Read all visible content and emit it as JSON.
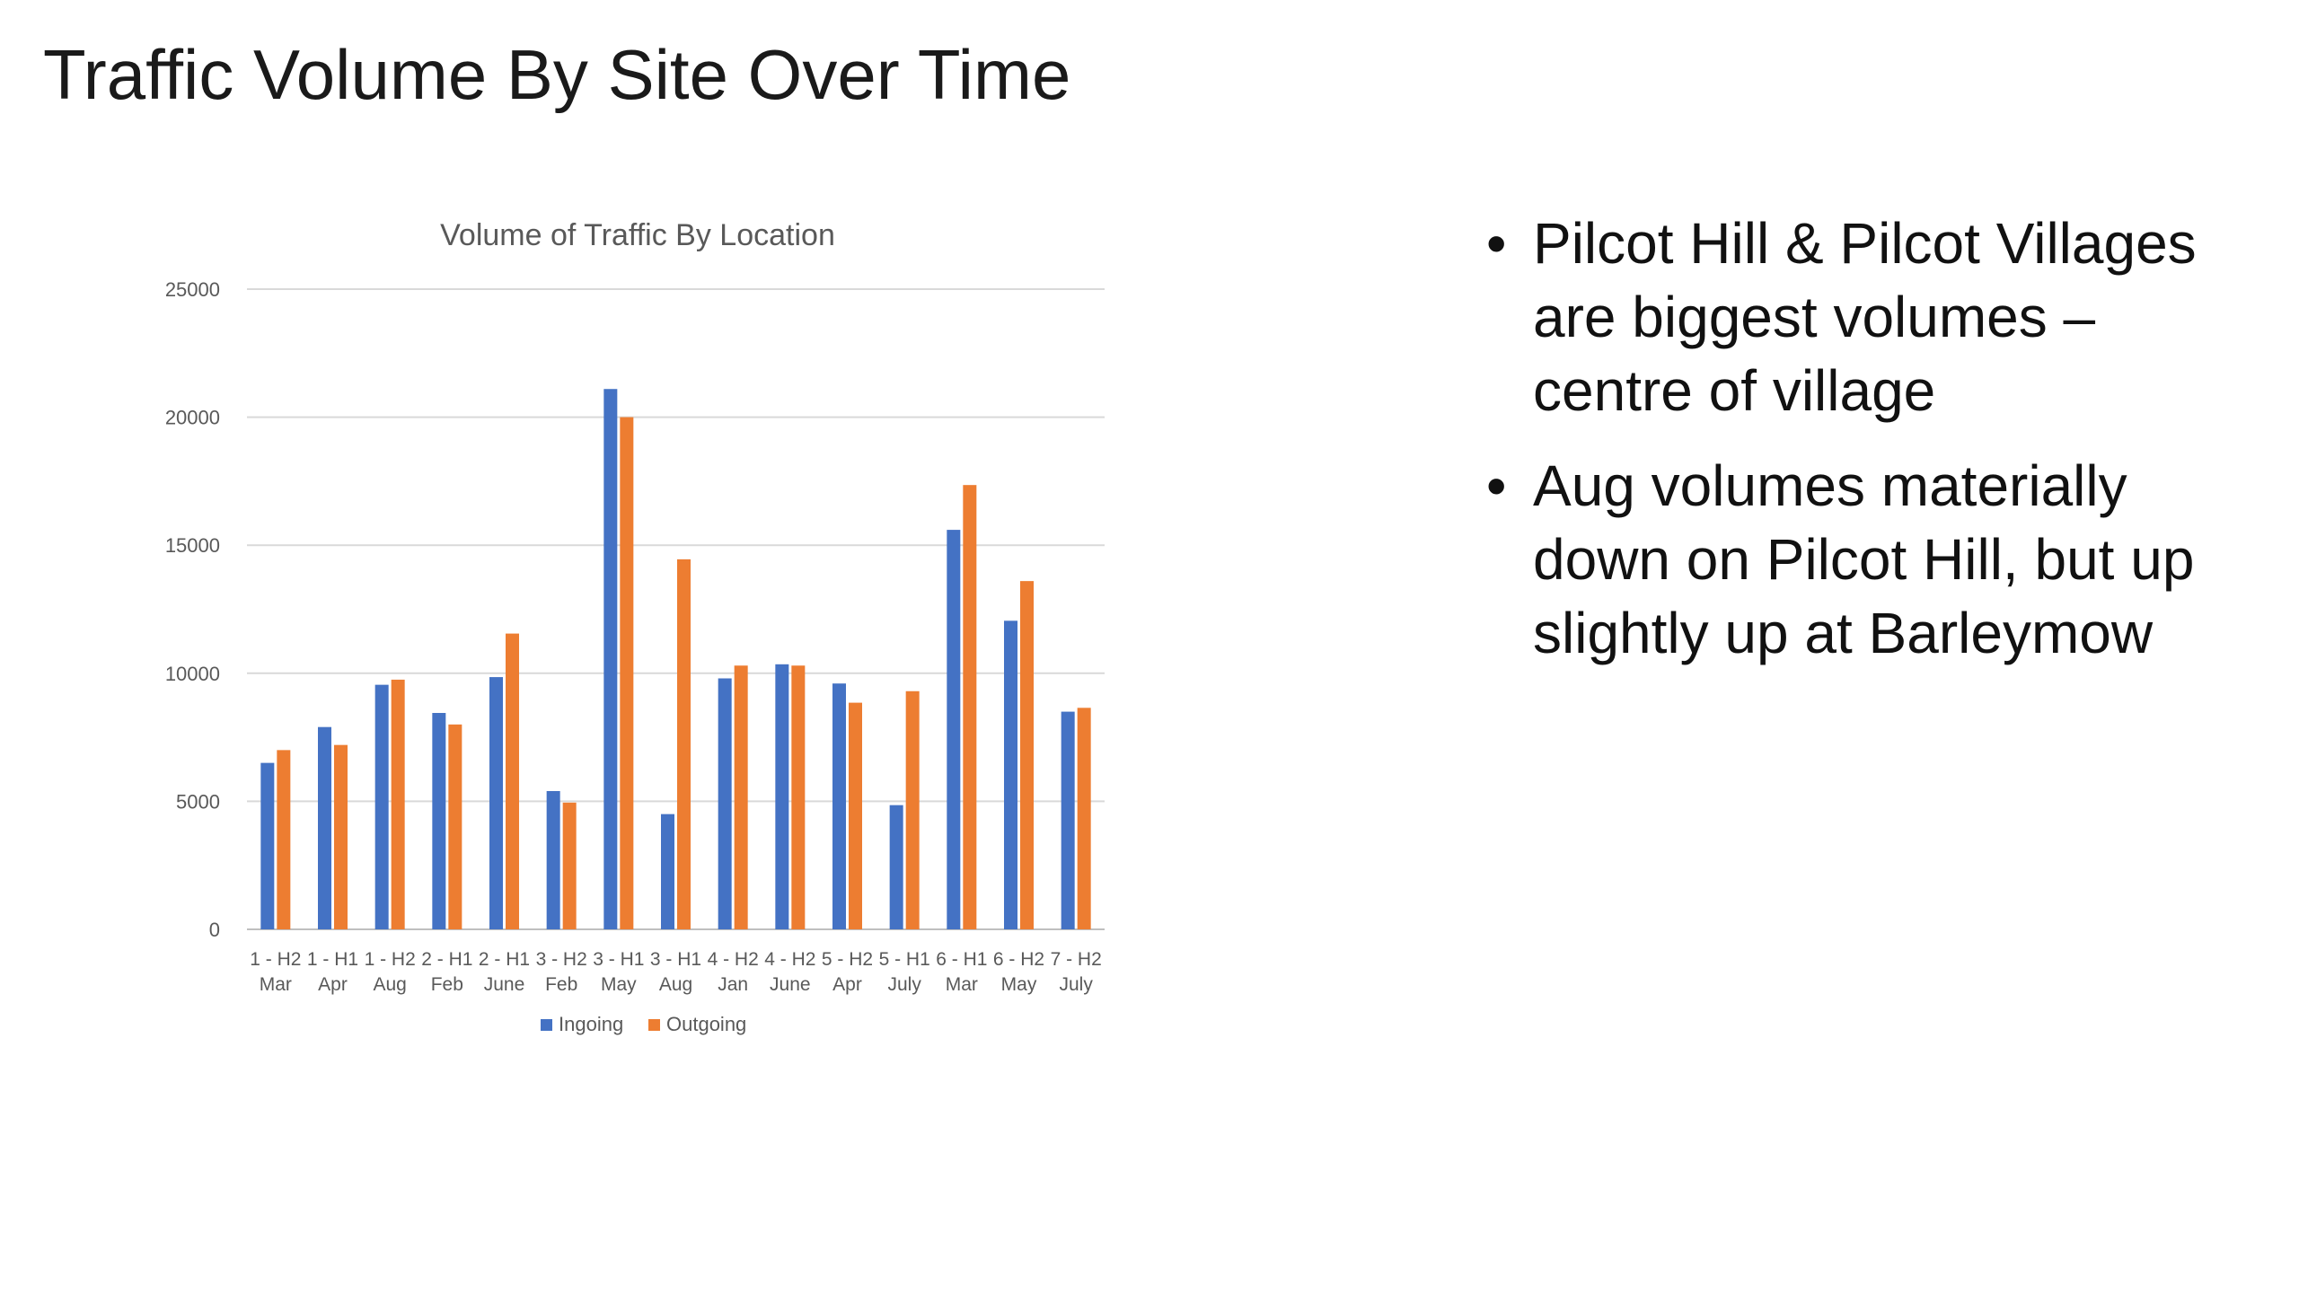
{
  "slide": {
    "title": "Traffic Volume By Site Over Time",
    "bullets": [
      "Pilcot Hill & Pilcot Villages are biggest volumes – centre of village",
      "Aug volumes materially down on Pilcot Hill, but up slightly up at Barleymow"
    ]
  },
  "chart_data": {
    "type": "bar",
    "title": "Volume of Traffic By Location",
    "categories": [
      [
        "1 - H2",
        "Mar"
      ],
      [
        "1 - H1",
        "Apr"
      ],
      [
        "1 - H2",
        "Aug"
      ],
      [
        "2 - H1",
        "Feb"
      ],
      [
        "2 - H1",
        "June"
      ],
      [
        "3 - H2",
        "Feb"
      ],
      [
        "3 - H1",
        "May"
      ],
      [
        "3 - H1",
        "Aug"
      ],
      [
        "4 - H2",
        "Jan"
      ],
      [
        "4 - H2",
        "June"
      ],
      [
        "5 - H2",
        "Apr"
      ],
      [
        "5 - H1",
        "July"
      ],
      [
        "6 - H1",
        "Mar"
      ],
      [
        "6 - H2",
        "May"
      ],
      [
        "7 - H2",
        "July"
      ]
    ],
    "series": [
      {
        "name": "Ingoing",
        "color": "#4472C4",
        "values": [
          6500,
          7900,
          9550,
          8450,
          9850,
          5400,
          21100,
          4500,
          9800,
          10350,
          9600,
          4850,
          15600,
          12050,
          8500
        ]
      },
      {
        "name": "Outgoing",
        "color": "#ED7D31",
        "values": [
          7000,
          7200,
          9750,
          8000,
          11550,
          4950,
          20000,
          14450,
          10300,
          10300,
          8850,
          9300,
          17350,
          13600,
          8650
        ]
      }
    ],
    "ylim": [
      0,
      25000
    ],
    "yticks": [
      0,
      5000,
      10000,
      15000,
      20000,
      25000
    ],
    "grid": true,
    "legend": "bottom"
  }
}
